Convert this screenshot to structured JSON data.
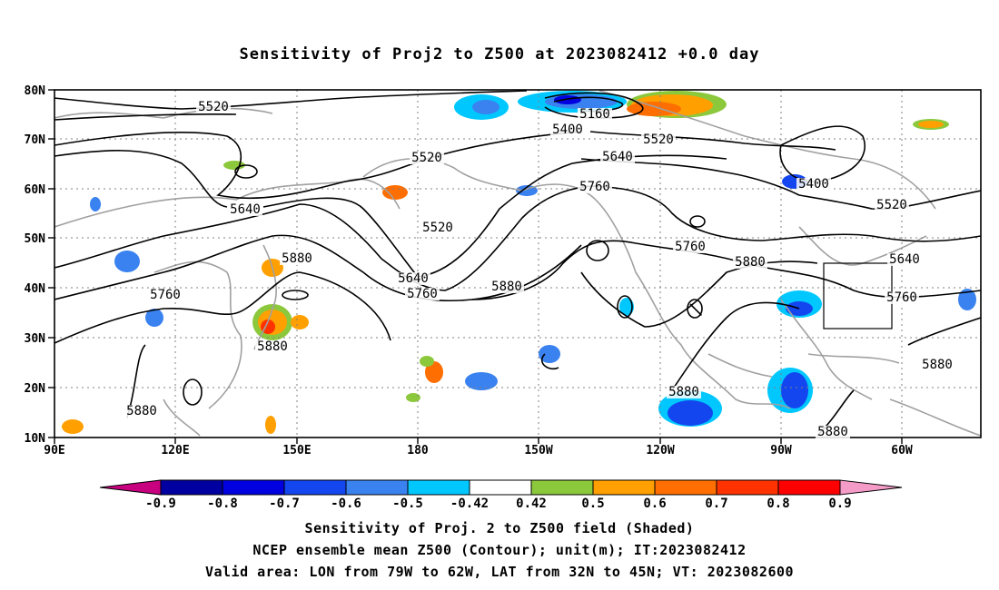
{
  "title": "Sensitivity of Proj2 to Z500 at 2023082412 +0.0 day",
  "axes": {
    "lat_labels": [
      "80N",
      "70N",
      "60N",
      "50N",
      "40N",
      "30N",
      "20N",
      "10N"
    ],
    "lon_labels": [
      "90E",
      "120E",
      "150E",
      "180",
      "150W",
      "120W",
      "90W",
      "60W"
    ]
  },
  "contour_labels": [
    {
      "text": "5520",
      "loc": "north-pacific-west"
    },
    {
      "text": "5160",
      "loc": "arctic-low-center"
    },
    {
      "text": "5400",
      "loc": "arctic-low-south"
    },
    {
      "text": "5520",
      "loc": "arctic-ring"
    },
    {
      "text": "5520",
      "loc": "bering-sea"
    },
    {
      "text": "5640",
      "loc": "gulf-of-alaska"
    },
    {
      "text": "5760",
      "loc": "alaska-panhandle"
    },
    {
      "text": "5640",
      "loc": "siberia"
    },
    {
      "text": "5520",
      "loc": "central-pacific"
    },
    {
      "text": "5640",
      "loc": "pacific-trough-upper"
    },
    {
      "text": "5760",
      "loc": "pacific-trough-lower"
    },
    {
      "text": "5880",
      "loc": "japan-ridge"
    },
    {
      "text": "5760",
      "loc": "east-asia"
    },
    {
      "text": "5880",
      "loc": "subtropical-pacific"
    },
    {
      "text": "5880",
      "loc": "northwest-pacific"
    },
    {
      "text": "5880",
      "loc": "south-china-sea"
    },
    {
      "text": "5760",
      "loc": "north-america"
    },
    {
      "text": "5880",
      "loc": "central-us"
    },
    {
      "text": "5400",
      "loc": "hudson-bay"
    },
    {
      "text": "5520",
      "loc": "labrador"
    },
    {
      "text": "5640",
      "loc": "atlantic-canada"
    },
    {
      "text": "5760",
      "loc": "us-east-coast"
    },
    {
      "text": "5880",
      "loc": "western-atlantic"
    },
    {
      "text": "5880",
      "loc": "mexico"
    },
    {
      "text": "5880",
      "loc": "caribbean"
    }
  ],
  "valid_area": {
    "lon": [
      -79,
      -62
    ],
    "lat": [
      32,
      45
    ]
  },
  "colorbar": {
    "labels": [
      "-0.9",
      "-0.8",
      "-0.7",
      "-0.6",
      "-0.5",
      "-0.42",
      "0.42",
      "0.5",
      "0.6",
      "0.7",
      "0.8",
      "0.9"
    ],
    "colors": [
      "#c8007f",
      "#0000a0",
      "#0000e0",
      "#1446f0",
      "#3a82f0",
      "#00c8ff",
      "#ffffff",
      "#8cc83c",
      "#ffa000",
      "#ff6e00",
      "#ff3200",
      "#ff0000",
      "#f59bc8"
    ]
  },
  "footer": {
    "line1": "Sensitivity of Proj. 2 to Z500 field (Shaded)",
    "line2": "NCEP ensemble mean Z500 (Contour); unit(m); IT:2023082412",
    "line3": "Valid area: LON from 79W to 62W, LAT from 32N to 45N; VT: 2023082600"
  }
}
